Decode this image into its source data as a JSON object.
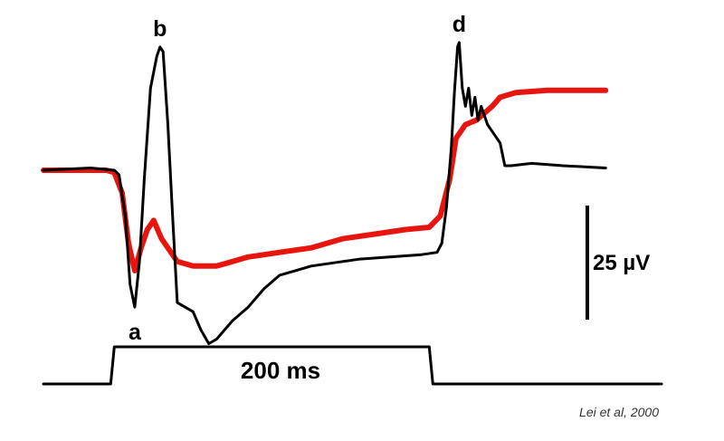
{
  "chart_data": {
    "type": "line",
    "title": "",
    "xlabel": "",
    "ylabel": "",
    "series": [
      {
        "name": "",
        "color": "#e8150f",
        "points": [
          [
            0,
            0
          ],
          [
            40,
            0
          ],
          [
            45,
            -0.5
          ],
          [
            50,
            -5
          ],
          [
            54,
            -16
          ],
          [
            58,
            -22
          ],
          [
            62,
            -17
          ],
          [
            66,
            -13
          ],
          [
            70,
            -11
          ],
          [
            75,
            -15
          ],
          [
            85,
            -20
          ],
          [
            95,
            -21
          ],
          [
            110,
            -21
          ],
          [
            130,
            -19
          ],
          [
            150,
            -18
          ],
          [
            170,
            -17
          ],
          [
            190,
            -15
          ],
          [
            210,
            -14
          ],
          [
            230,
            -13
          ],
          [
            245,
            -12.5
          ],
          [
            252,
            -10
          ],
          [
            258,
            -2
          ],
          [
            262,
            7
          ],
          [
            268,
            10
          ],
          [
            275,
            11
          ],
          [
            285,
            14
          ],
          [
            290,
            16
          ],
          [
            300,
            17
          ],
          [
            320,
            17.5
          ],
          [
            340,
            17.5
          ],
          [
            357,
            17.5
          ]
        ]
      },
      {
        "name": "",
        "color": "#000000",
        "points": [
          [
            0,
            0
          ],
          [
            30,
            0.5
          ],
          [
            45,
            0
          ],
          [
            48,
            -1
          ],
          [
            52,
            -10
          ],
          [
            55,
            -25
          ],
          [
            58,
            -30
          ],
          [
            61,
            -20
          ],
          [
            64,
            -2
          ],
          [
            68,
            18
          ],
          [
            72,
            25
          ],
          [
            74,
            27
          ],
          [
            76,
            26
          ],
          [
            79,
            10
          ],
          [
            82,
            -10
          ],
          [
            85,
            -29
          ],
          [
            90,
            -30
          ],
          [
            95,
            -31
          ],
          [
            100,
            -35
          ],
          [
            105,
            -38
          ],
          [
            110,
            -37
          ],
          [
            115,
            -35
          ],
          [
            120,
            -33
          ],
          [
            130,
            -30
          ],
          [
            140,
            -26
          ],
          [
            150,
            -23
          ],
          [
            160,
            -22
          ],
          [
            170,
            -21
          ],
          [
            180,
            -20.5
          ],
          [
            190,
            -20
          ],
          [
            200,
            -19.5
          ],
          [
            220,
            -19
          ],
          [
            240,
            -18.5
          ],
          [
            250,
            -18
          ],
          [
            253,
            -16
          ],
          [
            256,
            -8
          ],
          [
            259,
            5
          ],
          [
            261,
            17
          ],
          [
            263,
            27
          ],
          [
            264,
            28
          ],
          [
            266,
            18
          ],
          [
            268,
            14
          ],
          [
            270,
            18
          ],
          [
            272,
            12
          ],
          [
            274,
            16
          ],
          [
            276,
            11
          ],
          [
            278,
            14
          ],
          [
            282,
            10
          ],
          [
            286,
            8
          ],
          [
            290,
            6
          ],
          [
            293,
            1
          ],
          [
            297,
            1
          ],
          [
            310,
            1.5
          ],
          [
            330,
            1
          ],
          [
            357,
            0.5
          ]
        ]
      }
    ],
    "x_unit": "ms",
    "y_unit": "µV",
    "stimulus": {
      "on": 45,
      "off": 245
    },
    "markers": [
      {
        "label": "a",
        "series": 1,
        "x": 58
      },
      {
        "label": "b",
        "series": 1,
        "x": 74
      },
      {
        "label": "d",
        "series": 1,
        "x": 264
      }
    ],
    "scale_bar": {
      "value": 25,
      "label": "25 µV"
    },
    "time_bar": {
      "value": 200,
      "label": "200 ms"
    },
    "grid": false,
    "axes_visible": false
  },
  "citation": "Lei et al, 2000"
}
